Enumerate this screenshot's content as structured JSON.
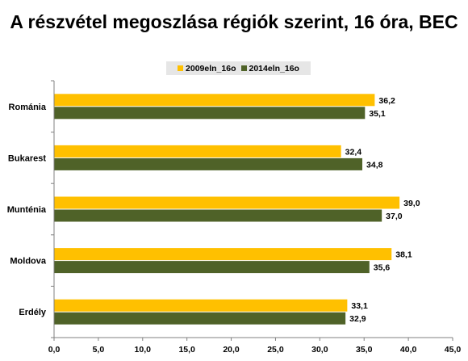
{
  "chart_data": {
    "type": "bar",
    "orientation": "horizontal",
    "title": "A részvétel megoszlása régiók szerint, 16 óra, BEC",
    "categories": [
      "Románia",
      "Bukarest",
      "Munténia",
      "Moldova",
      "Erdély"
    ],
    "series": [
      {
        "name": "2009eln_16o",
        "color": "#ffc000",
        "values": [
          36.2,
          32.4,
          39.0,
          38.1,
          33.1
        ],
        "labels": [
          "36,2",
          "32,4",
          "39,0",
          "38,1",
          "33,1"
        ]
      },
      {
        "name": "2014eln_16o",
        "color": "#4f6228",
        "values": [
          35.1,
          34.8,
          37.0,
          35.6,
          32.9
        ],
        "labels": [
          "35,1",
          "34,8",
          "37,0",
          "35,6",
          "32,9"
        ]
      }
    ],
    "xlim": [
      0,
      45
    ],
    "xticks": [
      0,
      5,
      10,
      15,
      20,
      25,
      30,
      35,
      40,
      45
    ],
    "xtick_labels": [
      "0,0",
      "5,0",
      "10,0",
      "15,0",
      "20,0",
      "25,0",
      "30,0",
      "35,0",
      "40,0",
      "45,0"
    ],
    "grid": false,
    "legend_position": "top-center"
  }
}
